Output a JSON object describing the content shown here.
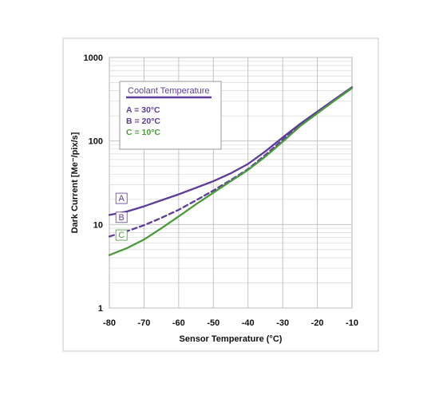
{
  "chart_data": {
    "type": "line",
    "title": "",
    "xlabel": "Sensor Temperature (°C)",
    "ylabel": "Dark Current [Me⁻/pix/s]",
    "xlim": [
      -80,
      -10
    ],
    "ylim": [
      1,
      1000
    ],
    "yscale": "log",
    "grid": true,
    "x_ticks": [
      "-80",
      "-70",
      "-60",
      "-50",
      "-40",
      "-30",
      "-20",
      "-10"
    ],
    "y_ticks": [
      "1",
      "10",
      "100",
      "1000"
    ],
    "legend": {
      "title": "Coolant Temperature",
      "placement": "top-left",
      "entries": [
        "A = 30°C",
        "B = 20°C",
        "C = 10°C"
      ]
    },
    "series": [
      {
        "tag": "A",
        "color": "#5e3c99",
        "dash": "solid",
        "x": [
          -80,
          -75,
          -70,
          -65,
          -60,
          -55,
          -50,
          -45,
          -40,
          -35,
          -30,
          -25,
          -20,
          -15,
          -10
        ],
        "y": [
          13,
          14.3,
          16.5,
          19.5,
          23,
          27.5,
          33,
          41,
          53,
          75,
          110,
          160,
          225,
          315,
          440
        ]
      },
      {
        "tag": "B",
        "color": "#5e3c99",
        "dash": "dashed",
        "x": [
          -80,
          -75,
          -70,
          -65,
          -60,
          -55,
          -50,
          -45,
          -40,
          -35,
          -30,
          -25,
          -20,
          -15,
          -10
        ],
        "y": [
          7.2,
          8.3,
          9.8,
          12,
          15,
          19.5,
          25.5,
          34,
          46,
          68,
          103,
          155,
          220,
          310,
          435
        ]
      },
      {
        "tag": "C",
        "color": "#4a9a3a",
        "dash": "solid",
        "x": [
          -80,
          -75,
          -70,
          -65,
          -60,
          -55,
          -50,
          -45,
          -40,
          -35,
          -30,
          -25,
          -20,
          -15,
          -10
        ],
        "y": [
          4.3,
          5.2,
          6.6,
          9,
          12.5,
          17.5,
          24,
          33,
          45,
          65,
          98,
          150,
          215,
          305,
          430
        ]
      }
    ]
  }
}
